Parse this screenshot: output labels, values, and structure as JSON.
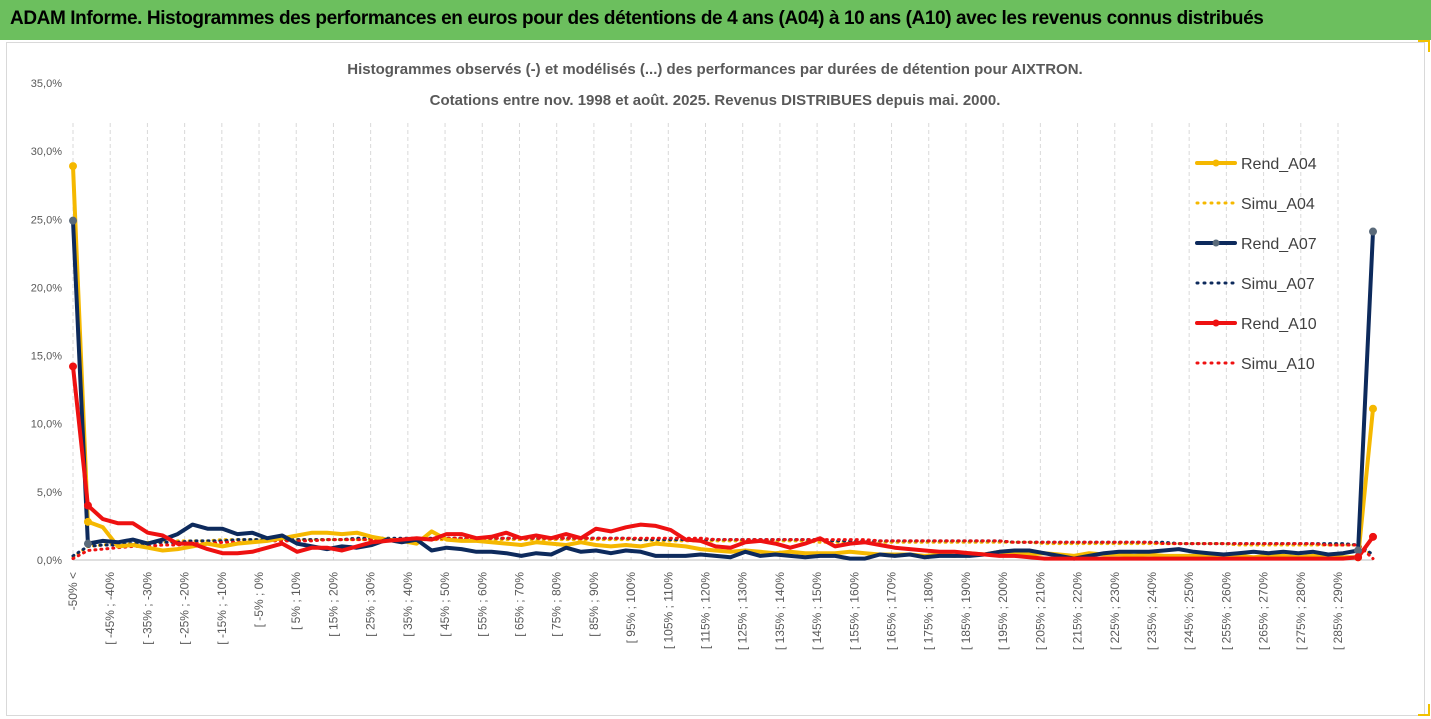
{
  "header": {
    "title": "ADAM Informe. Histogrammes des performances en euros pour des détentions de 4 ans (A04) à 10 ans (A10) avec les revenus connus distribués"
  },
  "chart_data": {
    "type": "line",
    "title": "Histogrammes observés (-) et modélisés (...) des performances par durées de détention pour AIXTRON.",
    "subtitle": "Cotations entre nov. 1998 et août. 2025. Revenus DISTRIBUES depuis mai. 2000.",
    "ylim": [
      0,
      35
    ],
    "yticks": [
      "0,0%",
      "5,0%",
      "10,0%",
      "15,0%",
      "20,0%",
      "25,0%",
      "30,0%",
      "35,0%"
    ],
    "xtick_labels": [
      "-50% <",
      "[ -45% ; -40%",
      "[ -35% ; -30%",
      "[ -25% ; -20%",
      "[ -15% ; -10%",
      "[ -5% ; 0%",
      "[ 5% ; 10%",
      "[ 15% ; 20%",
      "[ 25% ; 30%",
      "[ 35% ; 40%",
      "[ 45% ; 50%",
      "[ 55% ; 60%",
      "[ 65% ; 70%",
      "[ 75% ; 80%",
      "[ 85% ; 90%",
      "[ 95% ; 100%",
      "[ 105% ; 110%",
      "[ 115% ; 120%",
      "[ 125% ; 130%",
      "[ 135% ; 140%",
      "[ 145% ; 150%",
      "[ 155% ; 160%",
      "[ 165% ; 170%",
      "[ 175% ; 180%",
      "[ 185% ; 190%",
      "[ 195% ; 200%",
      "[ 205% ; 210%",
      "[ 215% ; 220%",
      "[ 225% ; 230%",
      "[ 235% ; 240%",
      "[ 245% ; 250%",
      "[ 255% ; 260%",
      "[ 265% ; 270%",
      "[ 275% ; 280%",
      "[ 285% ; 290%"
    ],
    "legend_position": "right",
    "grid": "vertical dashed",
    "series": [
      {
        "name": "Rend_A04",
        "style": "solid",
        "color": "#f5b800",
        "markers": true,
        "values": [
          28.9,
          2.8,
          2.4,
          1.0,
          1.1,
          0.9,
          0.7,
          0.8,
          1.0,
          1.2,
          1.0,
          1.2,
          1.3,
          1.4,
          1.6,
          1.8,
          2.0,
          2.0,
          1.9,
          2.0,
          1.7,
          1.5,
          1.4,
          1.2,
          2.1,
          1.5,
          1.4,
          1.4,
          1.3,
          1.2,
          1.1,
          1.3,
          1.2,
          1.1,
          1.3,
          1.1,
          1.0,
          1.1,
          1.0,
          1.2,
          1.1,
          1.0,
          0.8,
          0.7,
          0.6,
          0.7,
          0.6,
          0.5,
          0.6,
          0.5,
          0.5,
          0.5,
          0.6,
          0.5,
          0.4,
          0.4,
          0.4,
          0.3,
          0.4,
          0.3,
          0.5,
          0.4,
          0.6,
          0.5,
          0.4,
          0.5,
          0.4,
          0.3,
          0.5,
          0.4,
          0.4,
          0.3,
          0.4,
          0.3,
          0.3,
          0.3,
          0.3,
          0.3,
          0.3,
          0.2,
          0.3,
          0.3,
          0.2,
          0.3,
          0.2,
          0.2,
          0.2,
          11.1
        ]
      },
      {
        "name": "Simu_A04",
        "style": "dotted",
        "color": "#f5b800",
        "markers": false,
        "values": [
          0.2,
          1.0,
          1.1,
          1.2,
          1.2,
          1.3,
          1.3,
          1.4,
          1.4,
          1.4,
          1.5,
          1.5,
          1.5,
          1.5,
          1.5,
          1.5,
          1.5,
          1.5,
          1.5,
          1.5,
          1.5,
          1.5,
          1.5,
          1.5,
          1.5,
          1.5,
          1.5,
          1.5,
          1.5,
          1.5,
          1.5,
          1.5,
          1.5,
          1.5,
          1.5,
          1.5,
          1.5,
          1.5,
          1.5,
          1.4,
          1.4,
          1.4,
          1.4,
          1.4,
          1.4,
          1.4,
          1.4,
          1.4,
          1.4,
          1.4,
          1.3,
          1.3,
          1.3,
          1.3,
          1.3,
          1.3,
          1.3,
          1.3,
          1.3,
          1.3,
          1.3,
          1.3,
          1.3,
          1.3,
          1.3,
          1.2,
          1.2,
          1.2,
          1.2,
          1.2,
          1.2,
          1.2,
          1.2,
          1.2,
          1.2,
          1.2,
          1.2,
          1.2,
          1.1,
          1.1,
          1.1,
          1.1,
          1.1,
          1.1,
          1.1,
          1.1,
          1.1,
          0.3
        ]
      },
      {
        "name": "Rend_A07",
        "style": "solid",
        "color": "#0d2a5c",
        "markers": true,
        "values": [
          24.9,
          1.2,
          1.4,
          1.3,
          1.5,
          1.2,
          1.5,
          1.9,
          2.6,
          2.3,
          2.3,
          1.9,
          2.0,
          1.6,
          1.8,
          1.2,
          1.0,
          0.8,
          1.0,
          0.9,
          1.1,
          1.5,
          1.3,
          1.5,
          0.7,
          0.9,
          0.8,
          0.6,
          0.6,
          0.5,
          0.3,
          0.5,
          0.4,
          0.9,
          0.6,
          0.7,
          0.5,
          0.7,
          0.6,
          0.3,
          0.3,
          0.3,
          0.4,
          0.3,
          0.2,
          0.6,
          0.3,
          0.4,
          0.3,
          0.2,
          0.3,
          0.3,
          0.1,
          0.1,
          0.4,
          0.3,
          0.4,
          0.2,
          0.3,
          0.3,
          0.3,
          0.4,
          0.6,
          0.7,
          0.7,
          0.5,
          0.3,
          0.1,
          0.3,
          0.5,
          0.6,
          0.6,
          0.6,
          0.7,
          0.8,
          0.6,
          0.5,
          0.4,
          0.5,
          0.6,
          0.5,
          0.6,
          0.5,
          0.6,
          0.4,
          0.5,
          0.7,
          24.1
        ]
      },
      {
        "name": "Simu_A07",
        "style": "dotted",
        "color": "#0d2a5c",
        "markers": false,
        "values": [
          0.3,
          1.0,
          1.1,
          1.1,
          1.2,
          1.2,
          1.3,
          1.3,
          1.4,
          1.4,
          1.4,
          1.5,
          1.5,
          1.5,
          1.5,
          1.5,
          1.5,
          1.5,
          1.5,
          1.6,
          1.6,
          1.6,
          1.6,
          1.6,
          1.6,
          1.6,
          1.6,
          1.6,
          1.6,
          1.6,
          1.6,
          1.6,
          1.6,
          1.6,
          1.6,
          1.6,
          1.6,
          1.6,
          1.5,
          1.5,
          1.5,
          1.5,
          1.5,
          1.5,
          1.5,
          1.5,
          1.5,
          1.5,
          1.5,
          1.5,
          1.5,
          1.4,
          1.4,
          1.4,
          1.4,
          1.4,
          1.4,
          1.4,
          1.4,
          1.4,
          1.4,
          1.4,
          1.4,
          1.3,
          1.3,
          1.3,
          1.3,
          1.3,
          1.3,
          1.3,
          1.3,
          1.3,
          1.3,
          1.3,
          1.2,
          1.2,
          1.2,
          1.2,
          1.2,
          1.2,
          1.2,
          1.2,
          1.2,
          1.2,
          1.2,
          1.2,
          1.1,
          0.4
        ]
      },
      {
        "name": "Rend_A10",
        "style": "solid",
        "color": "#ee1111",
        "markers": true,
        "values": [
          14.2,
          4.0,
          3.0,
          2.7,
          2.7,
          2.0,
          1.8,
          1.2,
          1.2,
          0.8,
          0.5,
          0.5,
          0.6,
          0.9,
          1.2,
          0.6,
          0.9,
          0.9,
          0.7,
          1.0,
          1.3,
          1.4,
          1.5,
          1.6,
          1.5,
          1.9,
          1.9,
          1.6,
          1.7,
          2.0,
          1.6,
          1.8,
          1.6,
          1.9,
          1.6,
          2.3,
          2.1,
          2.4,
          2.6,
          2.5,
          2.2,
          1.5,
          1.4,
          1.0,
          0.9,
          1.3,
          1.4,
          1.2,
          0.9,
          1.2,
          1.6,
          1.0,
          1.2,
          1.3,
          1.1,
          0.9,
          0.8,
          0.7,
          0.6,
          0.6,
          0.5,
          0.4,
          0.3,
          0.3,
          0.2,
          0.1,
          0.1,
          0.1,
          0.1,
          0.1,
          0.1,
          0.1,
          0.1,
          0.1,
          0.1,
          0.1,
          0.1,
          0.1,
          0.1,
          0.1,
          0.1,
          0.1,
          0.1,
          0.1,
          0.1,
          0.1,
          0.2,
          1.7
        ]
      },
      {
        "name": "Simu_A10",
        "style": "dotted",
        "color": "#ee1111",
        "markers": false,
        "values": [
          0.1,
          0.7,
          0.8,
          0.9,
          1.0,
          1.0,
          1.1,
          1.1,
          1.2,
          1.2,
          1.3,
          1.3,
          1.3,
          1.4,
          1.4,
          1.4,
          1.4,
          1.5,
          1.5,
          1.5,
          1.5,
          1.5,
          1.5,
          1.5,
          1.5,
          1.6,
          1.6,
          1.6,
          1.6,
          1.6,
          1.6,
          1.6,
          1.6,
          1.6,
          1.6,
          1.6,
          1.6,
          1.6,
          1.6,
          1.6,
          1.6,
          1.6,
          1.6,
          1.5,
          1.5,
          1.5,
          1.5,
          1.5,
          1.5,
          1.5,
          1.5,
          1.5,
          1.5,
          1.5,
          1.4,
          1.4,
          1.4,
          1.4,
          1.4,
          1.4,
          1.4,
          1.4,
          1.4,
          1.3,
          1.3,
          1.3,
          1.3,
          1.3,
          1.3,
          1.3,
          1.3,
          1.3,
          1.3,
          1.2,
          1.2,
          1.2,
          1.2,
          1.2,
          1.2,
          1.2,
          1.2,
          1.2,
          1.2,
          1.2,
          1.1,
          1.1,
          1.1,
          0.1
        ]
      }
    ]
  }
}
